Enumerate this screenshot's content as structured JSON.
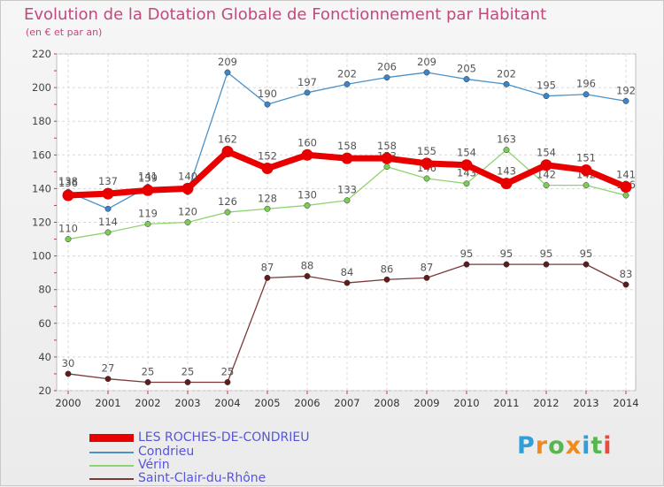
{
  "chart_data": {
    "type": "line",
    "title": "Evolution de la Dotation Globale de Fonctionnement par Habitant",
    "subtitle": "(en € et par an)",
    "categories": [
      "2000",
      "2001",
      "2002",
      "2003",
      "2004",
      "2005",
      "2006",
      "2007",
      "2008",
      "2009",
      "2010",
      "2011",
      "2012",
      "2013",
      "2014"
    ],
    "ylim": [
      20,
      220
    ],
    "yticks": [
      20,
      40,
      60,
      80,
      100,
      120,
      140,
      160,
      180,
      200,
      220
    ],
    "grid": true,
    "legend_position": "bottom-left",
    "series": [
      {
        "name": "Condrieu",
        "color": "#4a92c9",
        "marker": "#3d85c6",
        "width": 1.3,
        "radius": 3.2,
        "values": [
          138,
          128,
          141,
          138,
          209,
          190,
          197,
          202,
          206,
          209,
          205,
          202,
          195,
          196,
          192
        ],
        "labels": [
          "138",
          "",
          "141",
          "",
          "209",
          "190",
          "197",
          "202",
          "206",
          "209",
          "205",
          "202",
          "195",
          "196",
          "192"
        ]
      },
      {
        "name": "Vérin",
        "color": "#8fd36e",
        "marker": "#7dcc56",
        "width": 1.3,
        "radius": 3.2,
        "values": [
          110,
          114,
          119,
          120,
          126,
          128,
          130,
          133,
          153,
          146,
          143,
          163,
          142,
          142,
          136
        ],
        "labels": [
          "110",
          "114",
          "119",
          "120",
          "126",
          "128",
          "130",
          "133",
          "153",
          "146",
          "143",
          "163",
          "142",
          "142",
          "136"
        ]
      },
      {
        "name": "Saint-Clair-du-Rhône",
        "color": "#7b3a3a",
        "marker": "#5e1d1d",
        "width": 1.3,
        "radius": 3.2,
        "values": [
          30,
          27,
          25,
          25,
          25,
          87,
          88,
          84,
          86,
          87,
          95,
          95,
          95,
          95,
          83
        ],
        "labels": [
          "30",
          "27",
          "25",
          "25",
          "25",
          "87",
          "88",
          "84",
          "86",
          "87",
          "95",
          "95",
          "95",
          "95",
          "83"
        ]
      },
      {
        "name": "LES ROCHES-DE-CONDRIEU",
        "color": "#e80000",
        "marker": "#e80000",
        "width": 7,
        "radius": 6.5,
        "values": [
          136,
          137,
          139,
          140,
          162,
          152,
          160,
          158,
          158,
          155,
          154,
          143,
          154,
          151,
          141
        ],
        "labels": [
          "136",
          "137",
          "139",
          "140",
          "162",
          "152",
          "160",
          "158",
          "158",
          "155",
          "154",
          "143",
          "154",
          "151",
          "141"
        ]
      }
    ]
  },
  "legend": {
    "items": [
      {
        "label": "LES ROCHES-DE-CONDRIEU",
        "color": "#e80000",
        "text_color": "#5555dd"
      },
      {
        "label": "Condrieu",
        "color": "#4a92c9",
        "text_color": "#5555dd"
      },
      {
        "label": "Vérin",
        "color": "#8fd36e",
        "text_color": "#5555dd"
      },
      {
        "label": "Saint-Clair-du-Rhône",
        "color": "#7b3a3a",
        "text_color": "#5555dd"
      }
    ]
  },
  "logo": {
    "letters": [
      "P",
      "r",
      "o",
      "x",
      "i",
      "t",
      "i"
    ],
    "colors": [
      "#2f9fd8",
      "#f08a1c",
      "#55b74d",
      "#f08a1c",
      "#2f9fd8",
      "#55b74d",
      "#e84a3d"
    ]
  }
}
